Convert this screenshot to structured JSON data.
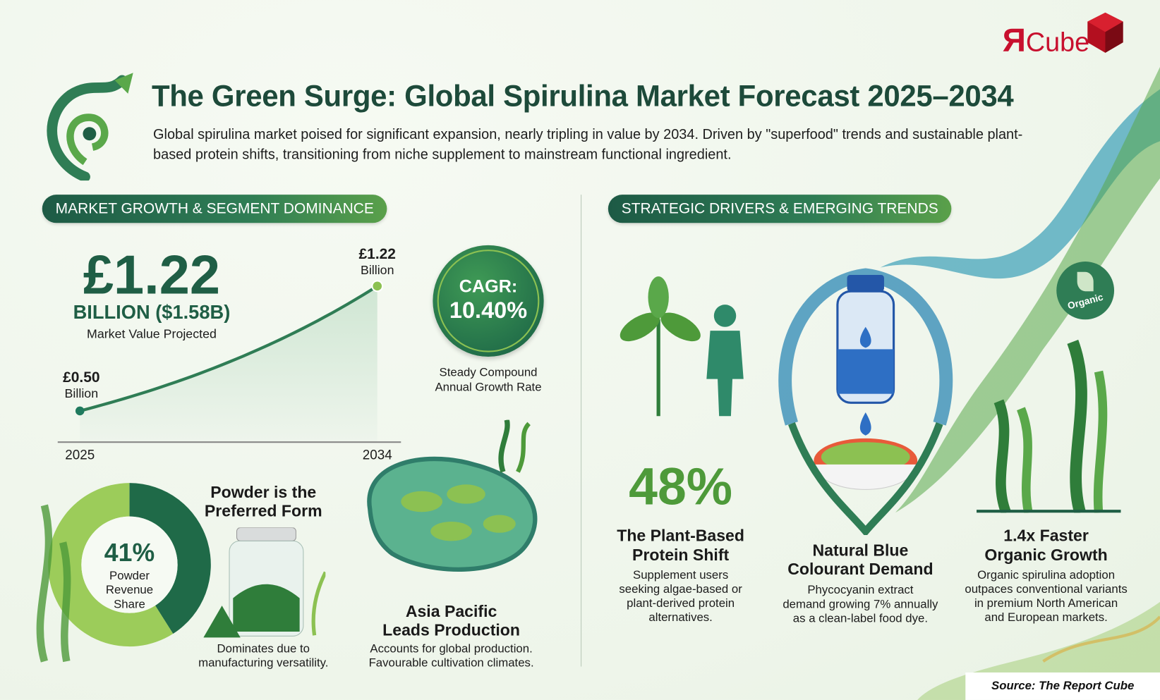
{
  "logo": {
    "text": "ЯCube",
    "brand_color": "#c8102e"
  },
  "header": {
    "title": "The Green Surge: Global Spirulina Market Forecast 2025–2034",
    "subtitle": "Global spirulina market poised for significant expansion, nearly tripling in value by 2034. Driven by \"superfood\" trends and sustainable plant-based protein shifts, transitioning from niche supplement to mainstream functional ingredient."
  },
  "left_section": {
    "pill": "MARKET GROWTH & SEGMENT DOMINANCE",
    "headline_value": "£1.22",
    "headline_unit": "BILLION ($1.58B)",
    "headline_caption": "Market Value Projected",
    "cagr": {
      "label": "CAGR:",
      "value": "10.40%",
      "caption_line1": "Steady Compound",
      "caption_line2": "Annual Growth Rate"
    },
    "powder": {
      "title_line1": "Powder is the",
      "title_line2": "Preferred Form",
      "share": "41%",
      "share_label_1": "Powder",
      "share_label_2": "Revenue",
      "share_label_3": "Share",
      "share_fraction": 0.41,
      "caption_line1": "Dominates due to",
      "caption_line2": "manufacturing versatility."
    },
    "asia": {
      "title_line1": "Asia Pacific",
      "title_line2": "Leads Production",
      "caption_line1": "Accounts for global production.",
      "caption_line2": "Favourable cultivation climates."
    }
  },
  "chart_data": {
    "type": "area",
    "x": [
      2025,
      2034
    ],
    "values": [
      0.5,
      1.22
    ],
    "tick_labels": [
      "2025",
      "2034"
    ],
    "data_labels": [
      {
        "value": "£0.50",
        "unit": "Billion"
      },
      {
        "value": "£1.22",
        "unit": "Billion"
      }
    ],
    "colors": {
      "line": "#2f7d55",
      "fill": "#cfe6d3",
      "end_point": "#8cc152"
    }
  },
  "right_section": {
    "pill": "STRATEGIC DRIVERS & EMERGING TRENDS",
    "organic_badge": "Organic",
    "columns": [
      {
        "stat": "48%",
        "title_line1": "The Plant-Based",
        "title_line2": "Protein Shift",
        "body": [
          "Supplement users",
          "seeking algae-based or",
          "plant-derived protein",
          "alternatives."
        ]
      },
      {
        "title_line1": "Natural Blue",
        "title_line2": "Colourant Demand",
        "body": [
          "Phycocyanin extract",
          "demand growing 7% annually",
          "as a clean-label food dye."
        ]
      },
      {
        "title_line1": "1.4x Faster",
        "title_line2": "Organic Growth",
        "body": [
          "Organic spirulina adoption",
          "outpaces conventional variants",
          "in premium North American",
          "and European markets."
        ]
      }
    ]
  },
  "footer": {
    "source": "Source: The Report Cube"
  },
  "colors": {
    "dark_green": "#1f5e45",
    "mid_green": "#2f7d55",
    "light_green": "#8cc152",
    "stat_green": "#4e9a3a"
  }
}
